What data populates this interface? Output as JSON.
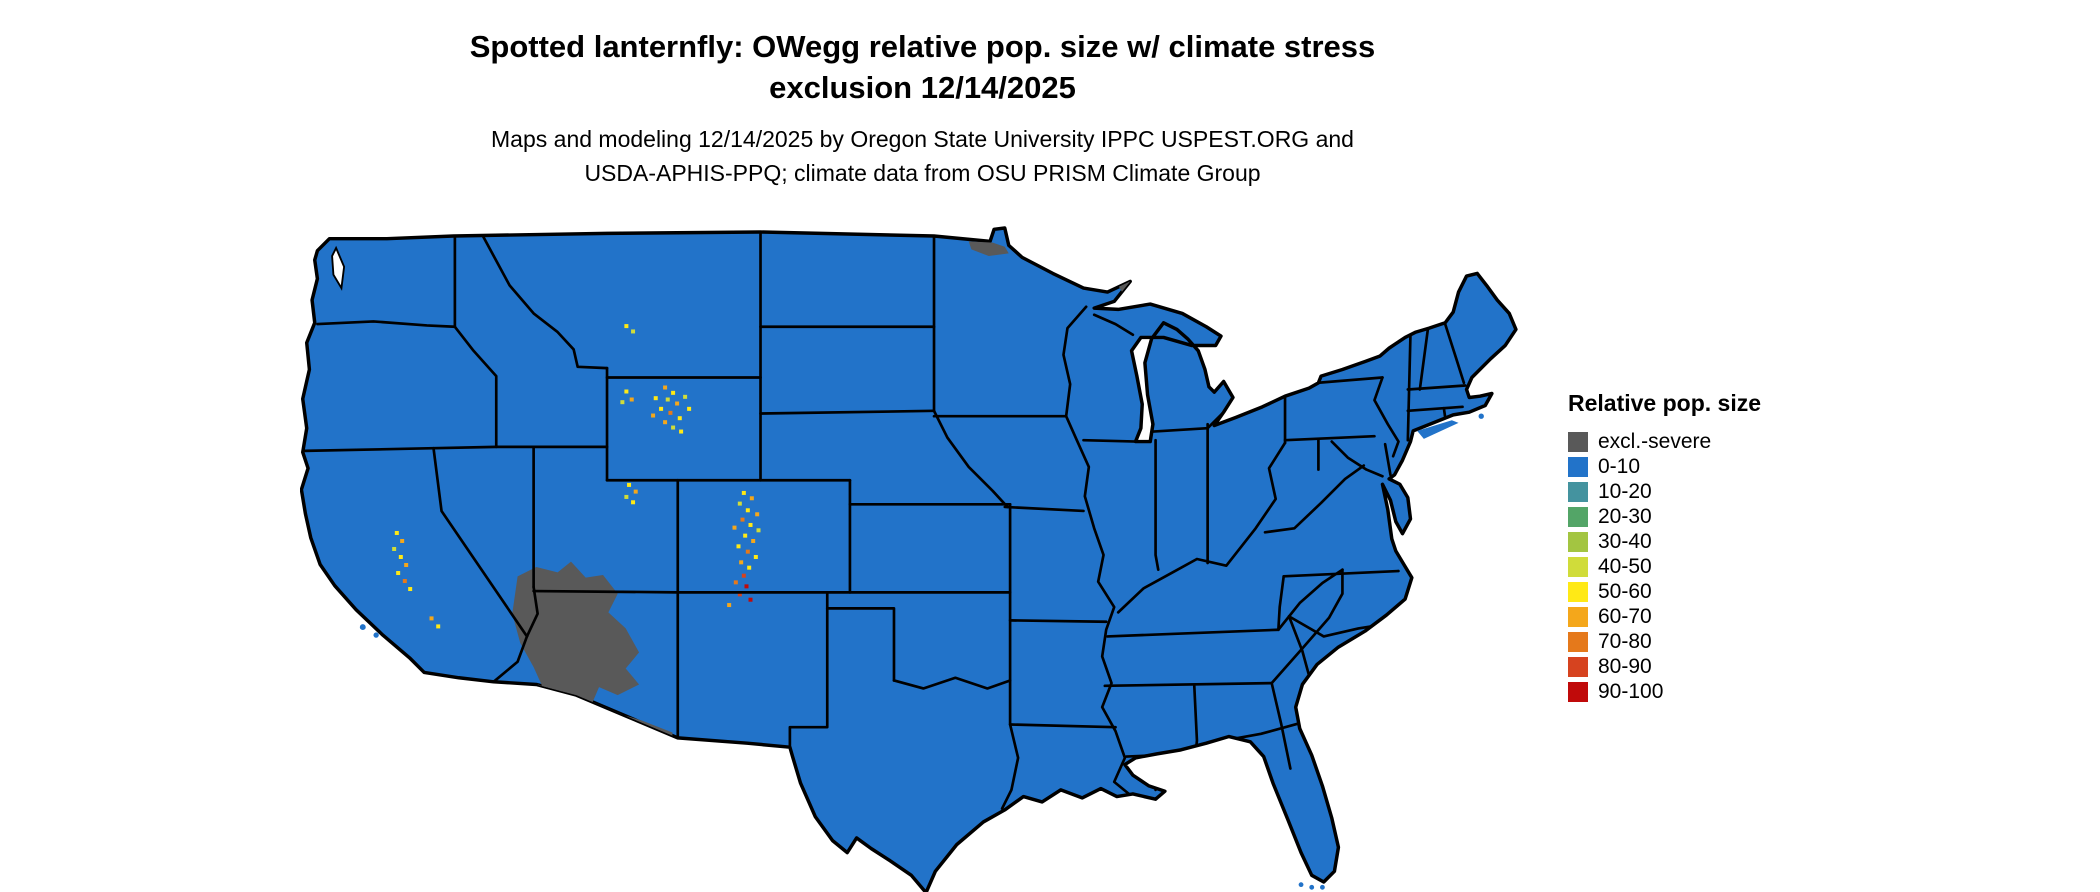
{
  "title": {
    "line1": "Spotted lanternfly: OWegg relative pop. size w/ climate stress",
    "line2": "exclusion 12/14/2025"
  },
  "subtitle": {
    "line1": "Maps and modeling 12/14/2025 by Oregon State University IPPC USPEST.ORG and",
    "line2": "USDA-APHIS-PPQ; climate data from OSU PRISM Climate Group"
  },
  "legend": {
    "title": "Relative pop. size",
    "items": [
      {
        "label": "excl.-severe",
        "color": "#595959"
      },
      {
        "label": "0-10",
        "color": "#2273c9"
      },
      {
        "label": "10-20",
        "color": "#44939f"
      },
      {
        "label": "20-30",
        "color": "#53a567"
      },
      {
        "label": "30-40",
        "color": "#a3c541"
      },
      {
        "label": "40-50",
        "color": "#d0dc3a"
      },
      {
        "label": "50-60",
        "color": "#ffe916"
      },
      {
        "label": "60-70",
        "color": "#f4a71b"
      },
      {
        "label": "70-80",
        "color": "#e5791b"
      },
      {
        "label": "80-90",
        "color": "#d6431f"
      },
      {
        "label": "90-100",
        "color": "#c00a0a"
      }
    ]
  }
}
